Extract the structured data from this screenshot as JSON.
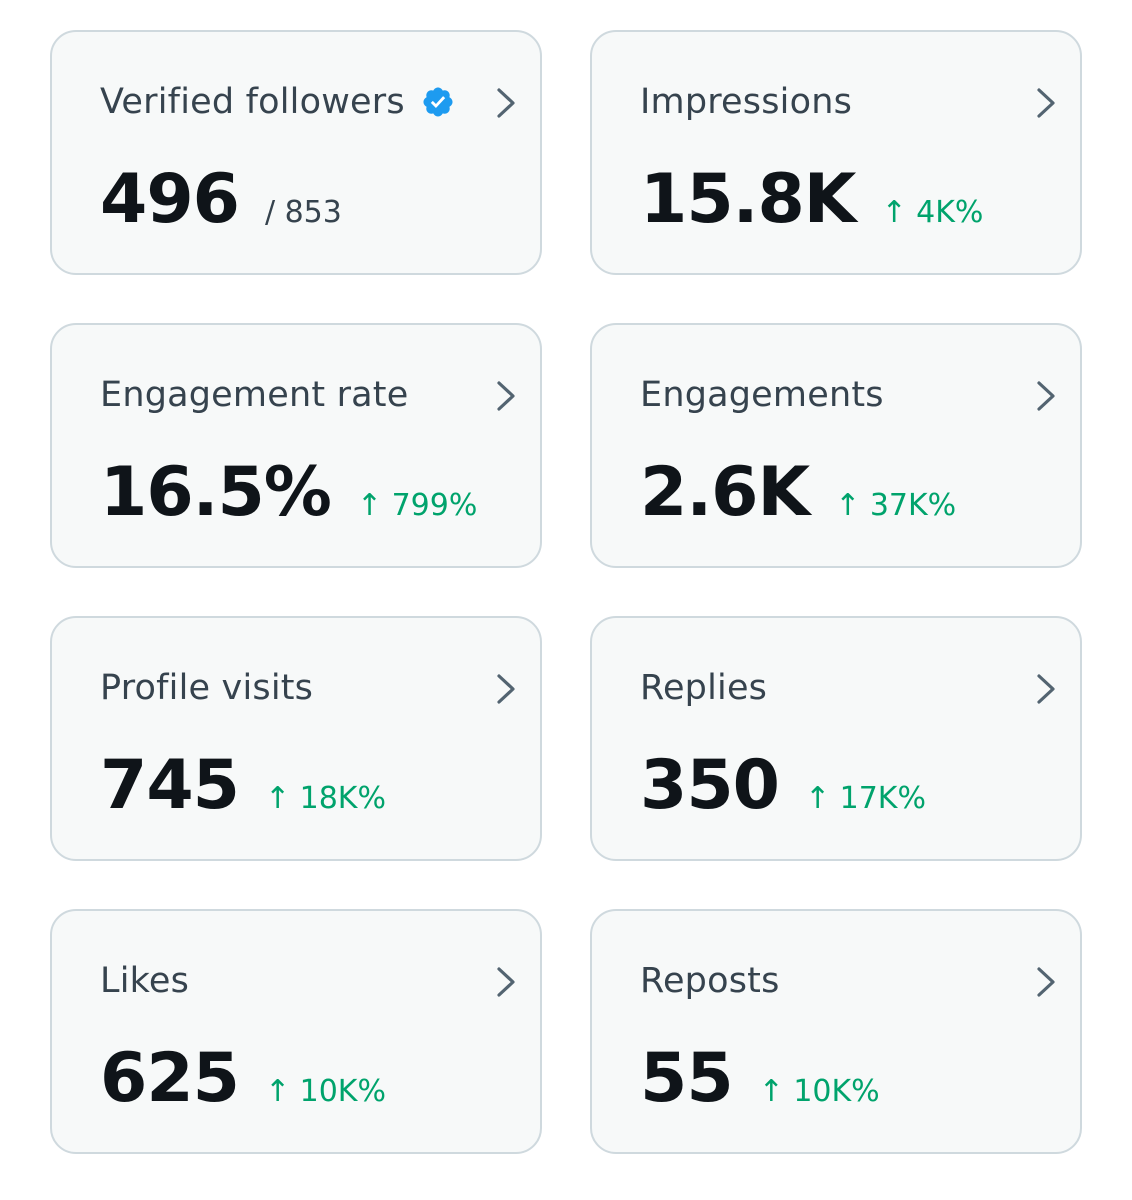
{
  "accent_colors": {
    "verified_badge": "#1d9bf0",
    "positive_change": "#00a36c",
    "card_background": "#f7f9f9",
    "card_border": "#cfd9de"
  },
  "cards": [
    {
      "title": "Verified followers",
      "icon": "verified-badge-icon",
      "value": "496",
      "secondary": "/ 853",
      "nav_icon": "chevron-right-icon"
    },
    {
      "title": "Impressions",
      "value": "15.8K",
      "change": "↑ 4K%",
      "nav_icon": "chevron-right-icon"
    },
    {
      "title": "Engagement rate",
      "value": "16.5%",
      "change": "↑ 799%",
      "nav_icon": "chevron-right-icon"
    },
    {
      "title": "Engagements",
      "value": "2.6K",
      "change": "↑ 37K%",
      "nav_icon": "chevron-right-icon"
    },
    {
      "title": "Profile visits",
      "value": "745",
      "change": "↑ 18K%",
      "nav_icon": "chevron-right-icon"
    },
    {
      "title": "Replies",
      "value": "350",
      "change": "↑ 17K%",
      "nav_icon": "chevron-right-icon"
    },
    {
      "title": "Likes",
      "value": "625",
      "change": "↑ 10K%",
      "nav_icon": "chevron-right-icon"
    },
    {
      "title": "Reposts",
      "value": "55",
      "change": "↑ 10K%",
      "nav_icon": "chevron-right-icon"
    }
  ]
}
